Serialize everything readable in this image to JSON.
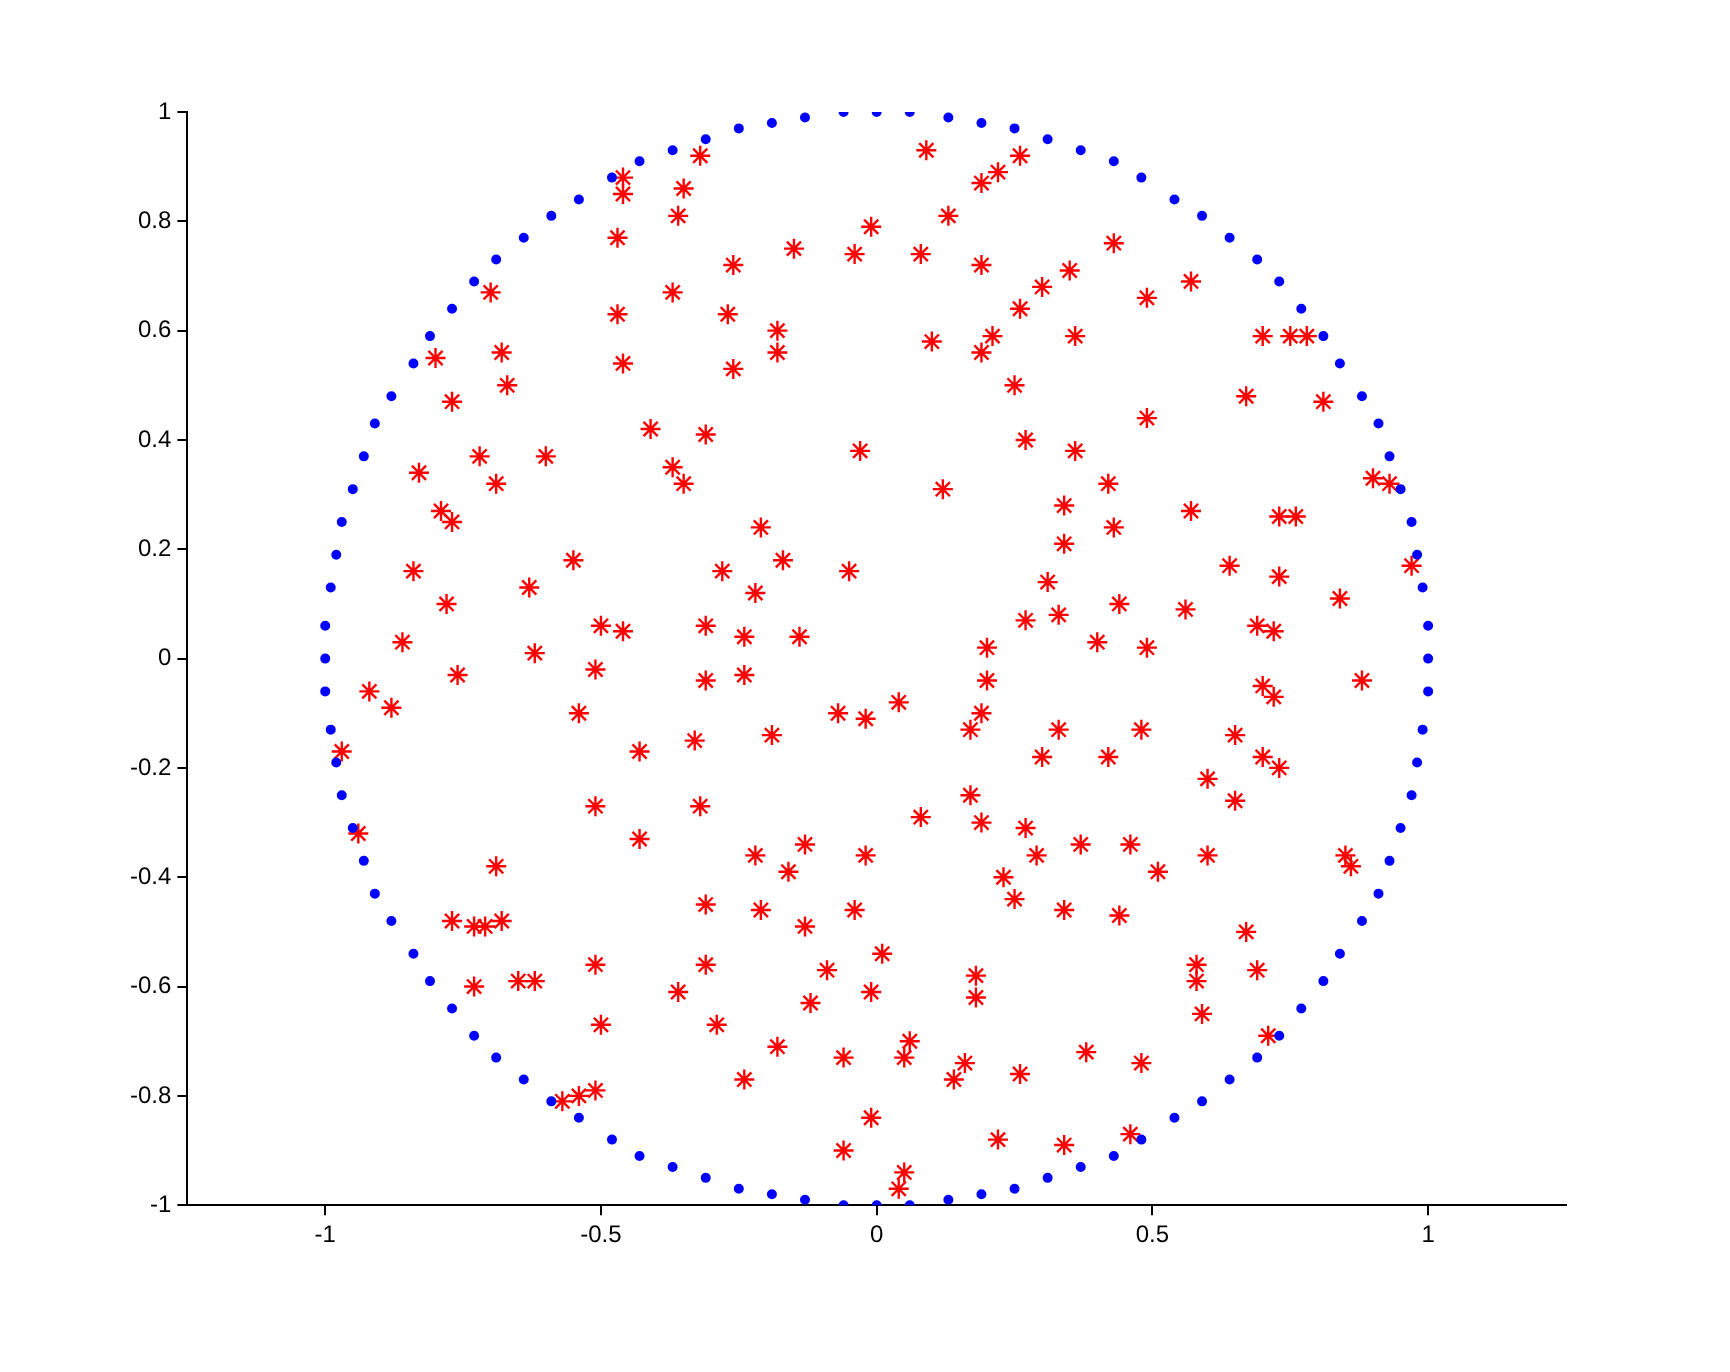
{
  "chart_data": {
    "type": "scatter",
    "xlim": [
      -1.25,
      1.25
    ],
    "xticks": [
      -1,
      -0.5,
      0,
      0.5,
      1
    ],
    "ylim": [
      -1,
      1
    ],
    "yticks": [
      -1,
      -0.8,
      -0.6,
      -0.4,
      -0.2,
      0,
      0.2,
      0.4,
      0.6,
      0.8,
      1
    ],
    "grid": false,
    "legend": false,
    "series": [
      {
        "color": "#0000ff",
        "marker": "circle",
        "x": [
          1,
          1,
          0.99,
          0.98,
          0.97,
          0.95,
          0.93,
          0.91,
          0.88,
          0.84,
          0.81,
          0.77,
          0.73,
          0.69,
          0.64,
          0.59,
          0.54,
          0.48,
          0.43,
          0.37,
          0.31,
          0.25,
          0.19,
          0.13,
          0.06,
          0,
          -0.06,
          -0.13,
          -0.19,
          -0.25,
          -0.31,
          -0.37,
          -0.43,
          -0.48,
          -0.54,
          -0.59,
          -0.64,
          -0.69,
          -0.73,
          -0.77,
          -0.81,
          -0.84,
          -0.88,
          -0.91,
          -0.93,
          -0.95,
          -0.97,
          -0.98,
          -0.99,
          -1,
          -1,
          -1,
          -0.99,
          -0.98,
          -0.97,
          -0.95,
          -0.93,
          -0.91,
          -0.88,
          -0.84,
          -0.81,
          -0.77,
          -0.73,
          -0.69,
          -0.64,
          -0.59,
          -0.54,
          -0.48,
          -0.43,
          -0.37,
          -0.31,
          -0.25,
          -0.19,
          -0.13,
          -0.06,
          0,
          0.06,
          0.13,
          0.19,
          0.25,
          0.31,
          0.37,
          0.43,
          0.48,
          0.54,
          0.59,
          0.64,
          0.69,
          0.73,
          0.77,
          0.81,
          0.84,
          0.88,
          0.91,
          0.93,
          0.95,
          0.97,
          0.98,
          0.99,
          1
        ],
        "values": [
          0,
          0.06,
          0.13,
          0.19,
          0.25,
          0.31,
          0.37,
          0.43,
          0.48,
          0.54,
          0.59,
          0.64,
          0.69,
          0.73,
          0.77,
          0.81,
          0.84,
          0.88,
          0.91,
          0.93,
          0.95,
          0.97,
          0.98,
          0.99,
          1,
          1,
          1,
          0.99,
          0.98,
          0.97,
          0.95,
          0.93,
          0.91,
          0.88,
          0.84,
          0.81,
          0.77,
          0.73,
          0.69,
          0.64,
          0.59,
          0.54,
          0.48,
          0.43,
          0.37,
          0.31,
          0.25,
          0.19,
          0.13,
          0.06,
          0,
          -0.06,
          -0.13,
          -0.19,
          -0.25,
          -0.31,
          -0.37,
          -0.43,
          -0.48,
          -0.54,
          -0.59,
          -0.64,
          -0.69,
          -0.73,
          -0.77,
          -0.81,
          -0.84,
          -0.88,
          -0.91,
          -0.93,
          -0.95,
          -0.97,
          -0.98,
          -0.99,
          -1,
          -1,
          -1,
          -0.99,
          -0.98,
          -0.97,
          -0.95,
          -0.93,
          -0.91,
          -0.88,
          -0.84,
          -0.81,
          -0.77,
          -0.73,
          -0.69,
          -0.64,
          -0.59,
          -0.54,
          -0.48,
          -0.43,
          -0.37,
          -0.31,
          -0.25,
          -0.19,
          -0.13,
          -0.06
        ]
      },
      {
        "color": "#ff0000",
        "marker": "cross",
        "x": [
          -0.46,
          -0.46,
          -0.35,
          -0.36,
          -0.47,
          -0.7,
          -0.37,
          -0.47,
          -0.8,
          -0.68,
          -0.46,
          -0.67,
          -0.77,
          -0.41,
          -0.72,
          -0.6,
          -0.83,
          -0.37,
          -0.35,
          -0.69,
          -0.79,
          -0.77,
          -0.84,
          -0.55,
          -0.63,
          -0.78,
          -0.5,
          -0.46,
          -0.86,
          -0.62,
          -0.32,
          0.09,
          0.26,
          0.22,
          0.19,
          -0.01,
          0.13,
          -0.15,
          -0.04,
          0.08,
          -0.26,
          0.19,
          0.3,
          0.26,
          -0.27,
          -0.18,
          -0.18,
          0.1,
          0.21,
          0.19,
          -0.26,
          0.25,
          -0.31,
          -0.03,
          0.27,
          0.12,
          0.34,
          -0.21,
          0.34,
          -0.17,
          -0.28,
          -0.05,
          -0.22,
          0.31,
          0.33,
          0.27,
          -0.31,
          -0.24,
          -0.14,
          0.2,
          0.43,
          0.35,
          0.49,
          0.57,
          0.36,
          0.7,
          0.75,
          0.78,
          0.67,
          0.81,
          0.49,
          0.36,
          0.42,
          0.9,
          0.93,
          0.43,
          0.57,
          0.73,
          0.76,
          0.64,
          0.73,
          0.97,
          0.84,
          0.44,
          0.56,
          0.69,
          0.72,
          0.4,
          0.49,
          -0.76,
          -0.51,
          -0.92,
          -0.88,
          -0.54,
          -0.97,
          -0.43,
          -0.51,
          -0.94,
          -0.43,
          -0.69,
          -0.77,
          -0.73,
          -0.71,
          -0.68,
          -0.51,
          -0.73,
          -0.65,
          -0.62,
          -0.36,
          -0.5,
          -0.57,
          -0.54,
          -0.51,
          -0.31,
          -0.24,
          -0.07,
          -0.02,
          0.04,
          0.2,
          0.19,
          0.17,
          0.33,
          -0.33,
          -0.19,
          0.3,
          -0.32,
          0.17,
          0.08,
          0.19,
          0.27,
          -0.22,
          -0.13,
          -0.16,
          -0.02,
          0.29,
          0.23,
          0.25,
          -0.31,
          -0.21,
          -0.13,
          -0.04,
          0.34,
          -0.31,
          0.01,
          -0.09,
          0.18,
          0.18,
          -0.01,
          -0.12,
          -0.29,
          -0.18,
          0.06,
          0.05,
          -0.06,
          -0.24,
          0.16,
          0.14,
          0.26,
          -0.01,
          0.22,
          0.34,
          -0.06,
          0.05,
          0.04,
          0.7,
          0.72,
          0.88,
          0.48,
          0.65,
          0.42,
          0.7,
          0.73,
          0.6,
          0.65,
          0.37,
          0.46,
          0.6,
          0.51,
          0.85,
          0.86,
          0.44,
          0.67,
          0.58,
          0.58,
          0.69,
          0.59,
          0.71,
          0.38,
          0.48,
          0.46
        ],
        "values": [
          0.88,
          0.85,
          0.86,
          0.81,
          0.77,
          0.67,
          0.67,
          0.63,
          0.55,
          0.56,
          0.54,
          0.5,
          0.47,
          0.42,
          0.37,
          0.37,
          0.34,
          0.35,
          0.32,
          0.32,
          0.27,
          0.25,
          0.16,
          0.18,
          0.13,
          0.1,
          0.06,
          0.05,
          0.03,
          0.01,
          0.92,
          0.93,
          0.92,
          0.89,
          0.87,
          0.79,
          0.81,
          0.75,
          0.74,
          0.74,
          0.72,
          0.72,
          0.68,
          0.64,
          0.63,
          0.6,
          0.56,
          0.58,
          0.59,
          0.56,
          0.53,
          0.5,
          0.41,
          0.38,
          0.4,
          0.31,
          0.28,
          0.24,
          0.21,
          0.18,
          0.16,
          0.16,
          0.12,
          0.14,
          0.08,
          0.07,
          0.06,
          0.04,
          0.04,
          0.02,
          0.76,
          0.71,
          0.66,
          0.69,
          0.59,
          0.59,
          0.59,
          0.59,
          0.48,
          0.47,
          0.44,
          0.38,
          0.32,
          0.33,
          0.32,
          0.24,
          0.27,
          0.26,
          0.26,
          0.17,
          0.15,
          0.17,
          0.11,
          0.1,
          0.09,
          0.06,
          0.05,
          0.03,
          0.02,
          -0.03,
          -0.02,
          -0.06,
          -0.09,
          -0.1,
          -0.17,
          -0.17,
          -0.27,
          -0.32,
          -0.33,
          -0.38,
          -0.48,
          -0.49,
          -0.49,
          -0.48,
          -0.56,
          -0.6,
          -0.59,
          -0.59,
          -0.61,
          -0.67,
          -0.81,
          -0.8,
          -0.79,
          -0.04,
          -0.03,
          -0.1,
          -0.11,
          -0.08,
          -0.04,
          -0.1,
          -0.13,
          -0.13,
          -0.15,
          -0.14,
          -0.18,
          -0.27,
          -0.25,
          -0.29,
          -0.3,
          -0.31,
          -0.36,
          -0.34,
          -0.39,
          -0.36,
          -0.36,
          -0.4,
          -0.44,
          -0.45,
          -0.46,
          -0.49,
          -0.46,
          -0.46,
          -0.56,
          -0.54,
          -0.57,
          -0.58,
          -0.62,
          -0.61,
          -0.63,
          -0.67,
          -0.71,
          -0.7,
          -0.73,
          -0.73,
          -0.77,
          -0.74,
          -0.77,
          -0.76,
          -0.84,
          -0.88,
          -0.89,
          -0.9,
          -0.94,
          -0.97,
          -0.05,
          -0.07,
          -0.04,
          -0.13,
          -0.14,
          -0.18,
          -0.18,
          -0.2,
          -0.22,
          -0.26,
          -0.34,
          -0.34,
          -0.36,
          -0.39,
          -0.36,
          -0.38,
          -0.47,
          -0.5,
          -0.56,
          -0.59,
          -0.57,
          -0.65,
          -0.69,
          -0.72,
          -0.74,
          -0.87
        ]
      }
    ]
  }
}
